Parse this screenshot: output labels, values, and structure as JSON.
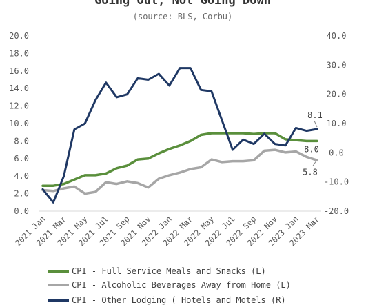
{
  "chart_data": {
    "type": "line",
    "title": "Going Out, Not Going Down",
    "subtitle": "(source: BLS, Corbu)",
    "x": [
      "2021 Jan",
      "2021 Feb",
      "2021 Mar",
      "2021 Apr",
      "2021 May",
      "2021 Jun",
      "2021 Jul",
      "2021 Aug",
      "2021 Sep",
      "2021 Oct",
      "2021 Nov",
      "2021 Dec",
      "2022 Jan",
      "2022 Feb",
      "2022 Mar",
      "2022 Apr",
      "2022 May",
      "2022 Jun",
      "2022 Jul",
      "2022 Aug",
      "2022 Sep",
      "2022 Oct",
      "2022 Nov",
      "2022 Dec",
      "2023 Jan",
      "2023 Feb",
      "2023 Mar"
    ],
    "x_tick_labels": [
      "2021 Jan",
      "2021 Mar",
      "2021 May",
      "2021 Jul",
      "2021 Sep",
      "2021 Nov",
      "2022 Jan",
      "2022 Mar",
      "2022 May",
      "2022 Jul",
      "2022 Sep",
      "2022 Nov",
      "2023 Jan",
      "2023 Mar"
    ],
    "y_left": {
      "ticks": [
        "0.0",
        "2.0",
        "4.0",
        "6.0",
        "8.0",
        "10.0",
        "12.0",
        "14.0",
        "16.0",
        "18.0",
        "20.0"
      ],
      "range": [
        0,
        20
      ]
    },
    "y_right": {
      "ticks": [
        "40.0",
        "30.0",
        "20.0",
        "10.0",
        "0.0",
        "-10.0",
        "-20.0"
      ],
      "range": [
        -20,
        40
      ]
    },
    "series": [
      {
        "name": "CPI - Full Service Meals and Snacks (L)",
        "axis": "left",
        "color": "#5a8f3c",
        "values": [
          2.9,
          2.9,
          3.1,
          3.6,
          4.1,
          4.1,
          4.3,
          4.9,
          5.2,
          5.9,
          6.0,
          6.6,
          7.1,
          7.5,
          8.0,
          8.7,
          8.9,
          8.9,
          8.9,
          8.9,
          8.8,
          8.9,
          8.9,
          8.2,
          8.1,
          8.0,
          8.0
        ],
        "end_label": "8.0"
      },
      {
        "name": "CPI - Alcoholic Beverages Away from Home (L)",
        "axis": "left",
        "color": "#a6a6a6",
        "values": [
          2.4,
          2.3,
          2.6,
          2.8,
          2.0,
          2.2,
          3.3,
          3.1,
          3.4,
          3.2,
          2.7,
          3.7,
          4.1,
          4.4,
          4.8,
          5.0,
          5.9,
          5.6,
          5.7,
          5.7,
          5.8,
          6.9,
          7.0,
          6.7,
          6.8,
          6.2,
          5.8
        ],
        "end_label": "5.8"
      },
      {
        "name": "CPI - Other Lodging ( Hotels and Motels (R)",
        "axis": "right",
        "color": "#1f3864",
        "values": [
          -12.5,
          -17.0,
          -8.0,
          8.0,
          10.0,
          18.0,
          24.0,
          19.0,
          20.0,
          25.5,
          25.0,
          27.0,
          23.0,
          29.0,
          29.0,
          21.5,
          21.0,
          11.0,
          1.0,
          4.5,
          3.0,
          6.5,
          3.0,
          2.5,
          8.5,
          7.5,
          8.1
        ],
        "end_label": "8.1"
      }
    ],
    "grid": false,
    "legend_position": "bottom"
  }
}
